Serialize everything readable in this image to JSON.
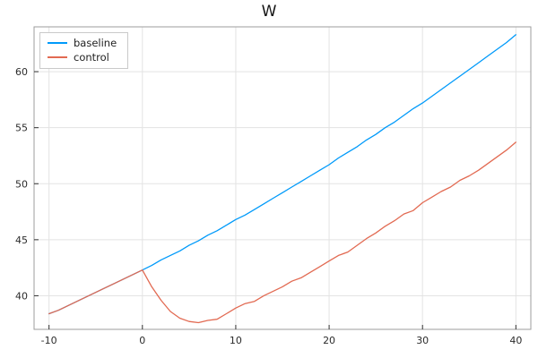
{
  "chart_data": {
    "type": "line",
    "title": "W",
    "xlabel": "",
    "ylabel": "",
    "xlim": [
      -11.6,
      41.6
    ],
    "ylim": [
      37.0,
      64.0
    ],
    "xticks": [
      -10,
      0,
      10,
      20,
      30,
      40
    ],
    "yticks": [
      40,
      45,
      50,
      55,
      60
    ],
    "grid": true,
    "legend_position": "top-left",
    "colors": {
      "grid": "#e3e3e3",
      "frame": "#9e9e9e",
      "tick": "#333333",
      "background": "#ffffff"
    },
    "series": [
      {
        "name": "baseline",
        "color": "#009afa",
        "x": [
          -10,
          -9,
          -8,
          -7,
          -6,
          -5,
          -4,
          -3,
          -2,
          -1,
          0,
          1,
          2,
          3,
          4,
          5,
          6,
          7,
          8,
          9,
          10,
          11,
          12,
          13,
          14,
          15,
          16,
          17,
          18,
          19,
          20,
          21,
          22,
          23,
          24,
          25,
          26,
          27,
          28,
          29,
          30,
          31,
          32,
          33,
          34,
          35,
          36,
          37,
          38,
          39,
          40
        ],
        "y": [
          38.4,
          38.7,
          39.1,
          39.5,
          39.9,
          40.3,
          40.7,
          41.1,
          41.5,
          41.9,
          42.3,
          42.7,
          43.2,
          43.6,
          44.0,
          44.5,
          44.9,
          45.4,
          45.8,
          46.3,
          46.8,
          47.2,
          47.7,
          48.2,
          48.7,
          49.2,
          49.7,
          50.2,
          50.7,
          51.2,
          51.7,
          52.3,
          52.8,
          53.3,
          53.9,
          54.4,
          55.0,
          55.5,
          56.1,
          56.7,
          57.2,
          57.8,
          58.4,
          59.0,
          59.6,
          60.2,
          60.8,
          61.4,
          62.0,
          62.6,
          63.3
        ]
      },
      {
        "name": "control",
        "color": "#e26a52",
        "x": [
          -10,
          -9,
          -8,
          -7,
          -6,
          -5,
          -4,
          -3,
          -2,
          -1,
          0,
          1,
          2,
          3,
          4,
          5,
          6,
          7,
          8,
          9,
          10,
          11,
          12,
          13,
          14,
          15,
          16,
          17,
          18,
          19,
          20,
          21,
          22,
          23,
          24,
          25,
          26,
          27,
          28,
          29,
          30,
          31,
          32,
          33,
          34,
          35,
          36,
          37,
          38,
          39,
          40
        ],
        "y": [
          38.4,
          38.7,
          39.1,
          39.5,
          39.9,
          40.3,
          40.7,
          41.1,
          41.5,
          41.9,
          42.3,
          40.8,
          39.6,
          38.6,
          38.0,
          37.7,
          37.6,
          37.8,
          37.9,
          38.4,
          38.9,
          39.3,
          39.5,
          40.0,
          40.4,
          40.8,
          41.3,
          41.6,
          42.1,
          42.6,
          43.1,
          43.6,
          43.9,
          44.5,
          45.1,
          45.6,
          46.2,
          46.7,
          47.3,
          47.6,
          48.3,
          48.8,
          49.3,
          49.7,
          50.3,
          50.7,
          51.2,
          51.8,
          52.4,
          53.0,
          53.7
        ]
      }
    ]
  }
}
